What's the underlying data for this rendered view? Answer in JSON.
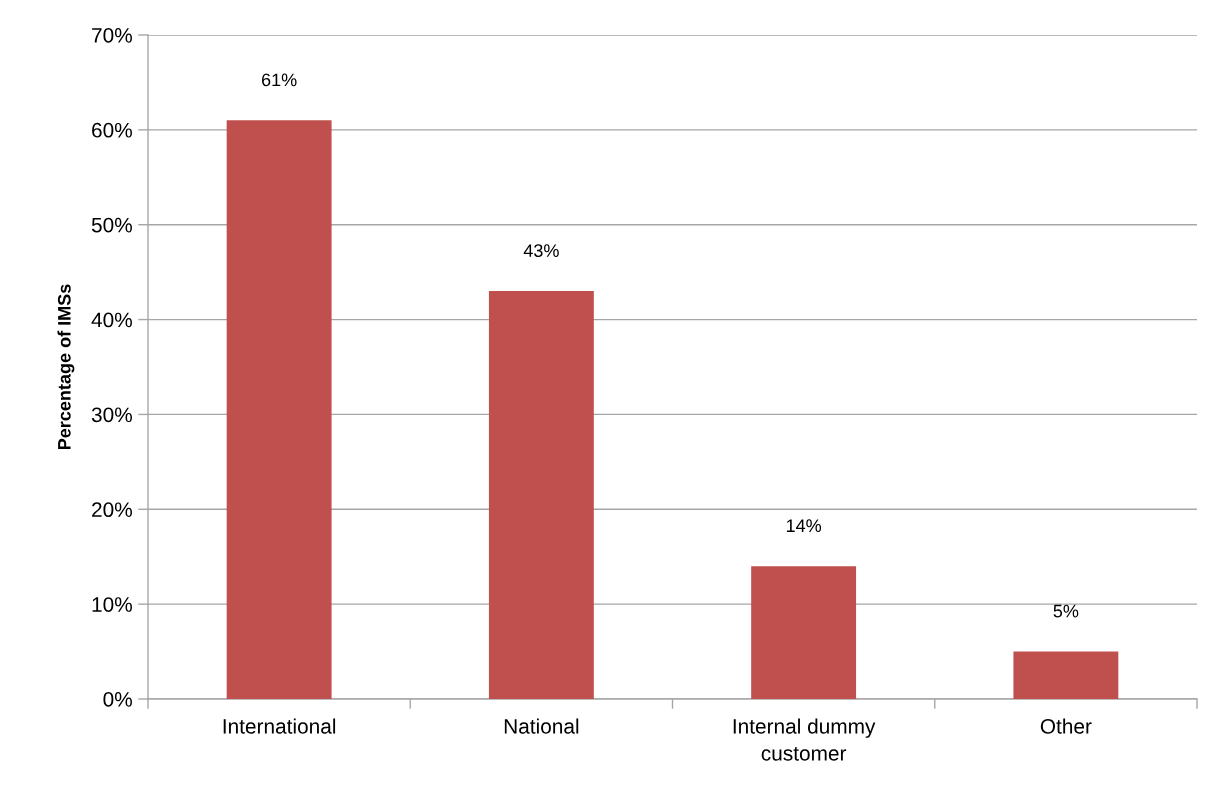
{
  "chart_data": {
    "type": "bar",
    "ylabel": "Percentage of IMSs",
    "categories": [
      "International",
      "National",
      "Internal dummy\ncustomer",
      "Other"
    ],
    "values": [
      61,
      43,
      14,
      5
    ],
    "value_labels": [
      "61%",
      "43%",
      "14%",
      "5%"
    ],
    "color": "#c0504d",
    "ylim": [
      0,
      70
    ],
    "yticks": [
      {
        "value": 0,
        "label": "0%"
      },
      {
        "value": 10,
        "label": "10%"
      },
      {
        "value": 20,
        "label": "20%"
      },
      {
        "value": 30,
        "label": "30%"
      },
      {
        "value": 40,
        "label": "40%"
      },
      {
        "value": 50,
        "label": "50%"
      },
      {
        "value": 60,
        "label": "60%"
      },
      {
        "value": 70,
        "label": "70%"
      }
    ],
    "grid": "y",
    "legend": false
  }
}
